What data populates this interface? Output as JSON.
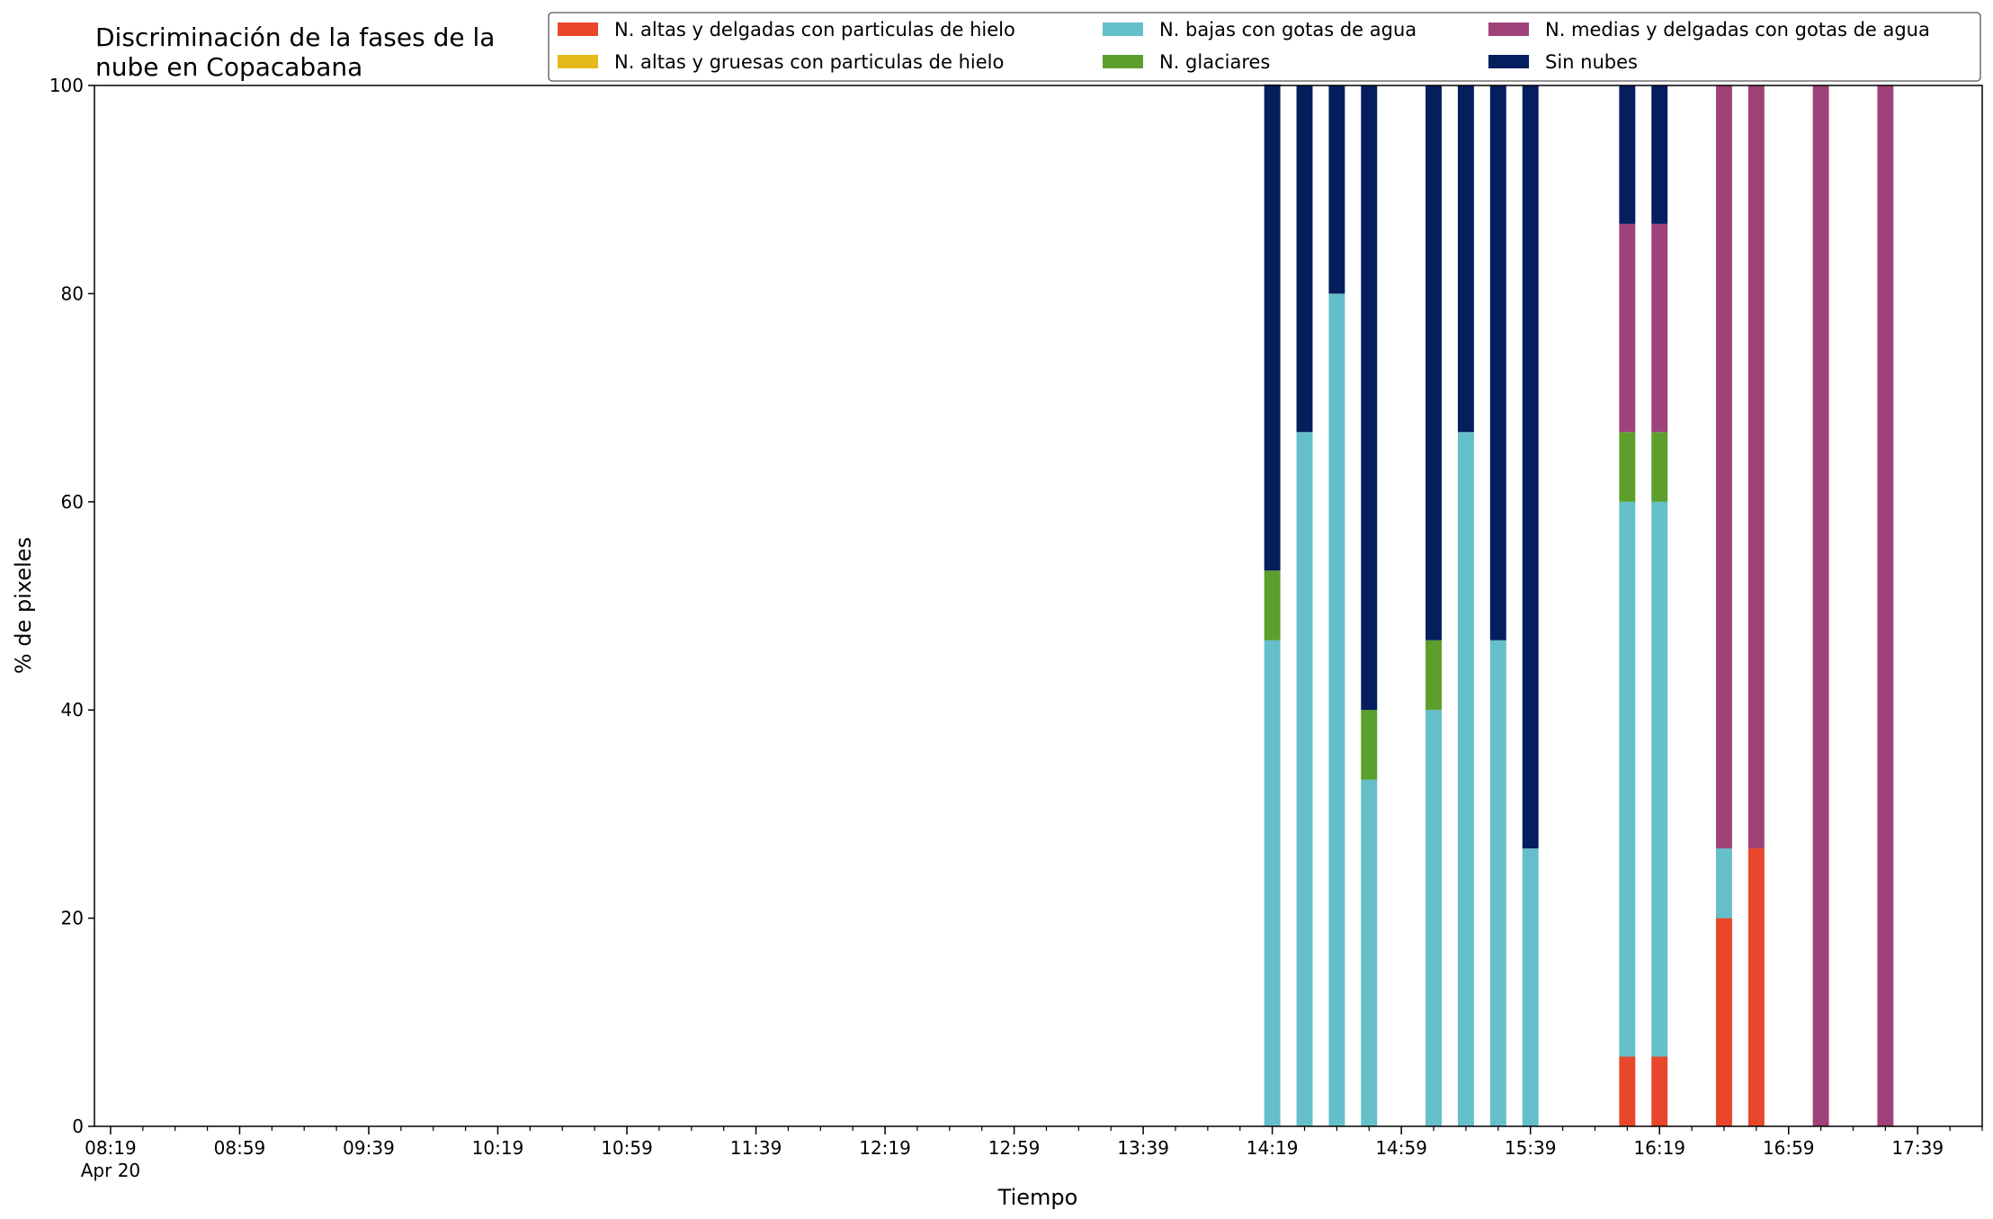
{
  "chart_data": {
    "type": "bar",
    "stacked": true,
    "title": [
      "Discriminación de la fases de la",
      "nube en Copacabana"
    ],
    "xlabel": "Tiempo",
    "ylabel": "% de pixeles",
    "ylim": [
      0,
      100
    ],
    "y_ticks": [
      0,
      20,
      40,
      60,
      80,
      100
    ],
    "x_range": [
      "08:14",
      "17:59"
    ],
    "x_tick_labels": [
      "08:19",
      "08:59",
      "09:39",
      "10:19",
      "10:59",
      "11:39",
      "12:19",
      "12:59",
      "13:39",
      "14:19",
      "14:59",
      "15:39",
      "16:19",
      "16:59",
      "17:39"
    ],
    "x_date_label": "Apr 20",
    "minor_tick_minutes": 10,
    "bar_width_minutes": 5,
    "legend_position": "top-right",
    "legend_columns": 3,
    "grid": false,
    "times": [
      "14:19",
      "14:29",
      "14:39",
      "14:49",
      "15:09",
      "15:19",
      "15:29",
      "15:39",
      "16:09",
      "16:19",
      "16:39",
      "16:49",
      "17:09",
      "17:29"
    ],
    "series": [
      {
        "name": "N. altas y delgadas con particulas de hielo",
        "color": "#e8472b",
        "values": [
          0,
          0,
          0,
          0,
          0,
          0,
          0,
          0,
          6.7,
          6.7,
          20,
          26.7,
          0,
          0
        ]
      },
      {
        "name": "N. altas y gruesas con particulas de hielo",
        "color": "#e5b91a",
        "values": [
          0,
          0,
          0,
          0,
          0,
          0,
          0,
          0,
          0,
          0,
          0,
          0,
          0,
          0
        ]
      },
      {
        "name": "N. bajas con gotas de agua",
        "color": "#65bfca",
        "values": [
          46.7,
          66.7,
          80,
          33.3,
          40,
          66.7,
          46.7,
          26.7,
          53.3,
          53.3,
          6.7,
          0,
          0,
          0
        ]
      },
      {
        "name": "N. glaciares",
        "color": "#5c9f2c",
        "values": [
          6.7,
          0,
          0,
          6.7,
          6.7,
          0,
          0,
          0,
          6.7,
          6.7,
          0,
          0,
          0,
          0
        ]
      },
      {
        "name": "N. medias y delgadas con gotas de agua",
        "color": "#a0427a",
        "values": [
          0,
          0,
          0,
          0,
          0,
          0,
          0,
          0,
          20,
          20,
          73.3,
          73.3,
          100,
          100
        ]
      },
      {
        "name": "Sin nubes",
        "color": "#041e5e",
        "values": [
          46.7,
          33.3,
          20,
          60,
          53.3,
          33.3,
          53.3,
          73.3,
          13.3,
          13.3,
          0,
          0,
          0,
          0
        ]
      }
    ]
  }
}
